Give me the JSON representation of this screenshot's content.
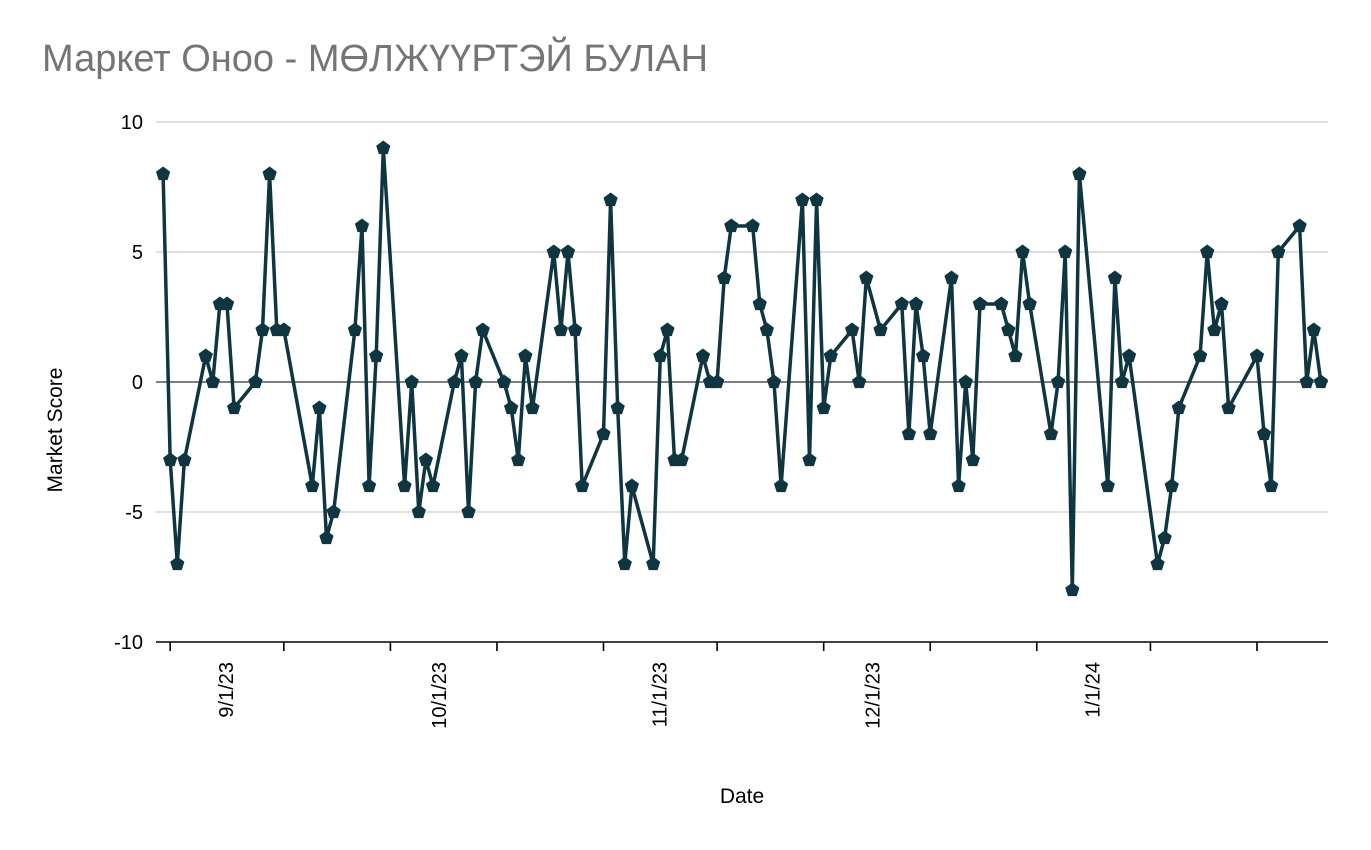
{
  "chart_data": {
    "type": "line",
    "title": "Маркет Оноо - МӨЛЖҮҮРТЭЙ БУЛАН",
    "xlabel": "Date",
    "ylabel": "Market Score",
    "ylim": [
      -10,
      10
    ],
    "yticks": [
      -10,
      -5,
      0,
      5,
      10
    ],
    "xtick_labels": [
      "9/1/23",
      "10/1/23",
      "11/1/23",
      "12/1/23",
      "1/1/24"
    ],
    "xlim": [
      "2023-08-14",
      "2024-01-26"
    ],
    "grid": true,
    "line_color": "#0f3640",
    "marker": "pentagon",
    "series": [
      {
        "x": [
          "2023-08-15",
          "2023-08-16",
          "2023-08-17",
          "2023-08-18",
          "2023-08-21",
          "2023-08-22",
          "2023-08-23",
          "2023-08-24",
          "2023-08-25",
          "2023-08-28",
          "2023-08-29",
          "2023-08-30",
          "2023-08-31",
          "2023-09-01",
          "2023-09-05",
          "2023-09-06",
          "2023-09-07",
          "2023-09-08",
          "2023-09-11",
          "2023-09-12",
          "2023-09-13",
          "2023-09-14",
          "2023-09-15",
          "2023-09-18",
          "2023-09-19",
          "2023-09-20",
          "2023-09-21",
          "2023-09-22",
          "2023-09-25",
          "2023-09-26",
          "2023-09-27",
          "2023-09-28",
          "2023-09-29",
          "2023-10-02",
          "2023-10-03",
          "2023-10-04",
          "2023-10-05",
          "2023-10-06",
          "2023-10-09",
          "2023-10-10",
          "2023-10-11",
          "2023-10-12",
          "2023-10-13",
          "2023-10-16",
          "2023-10-17",
          "2023-10-18",
          "2023-10-19",
          "2023-10-20",
          "2023-10-23",
          "2023-10-24",
          "2023-10-25",
          "2023-10-26",
          "2023-10-27",
          "2023-10-30",
          "2023-10-31",
          "2023-11-01",
          "2023-11-02",
          "2023-11-03",
          "2023-11-06",
          "2023-11-07",
          "2023-11-08",
          "2023-11-09",
          "2023-11-10",
          "2023-11-13",
          "2023-11-14",
          "2023-11-15",
          "2023-11-16",
          "2023-11-17",
          "2023-11-20",
          "2023-11-21",
          "2023-11-22",
          "2023-11-24",
          "2023-11-27",
          "2023-11-28",
          "2023-11-29",
          "2023-11-30",
          "2023-12-01",
          "2023-12-04",
          "2023-12-05",
          "2023-12-06",
          "2023-12-07",
          "2023-12-08",
          "2023-12-11",
          "2023-12-12",
          "2023-12-13",
          "2023-12-14",
          "2023-12-15",
          "2023-12-18",
          "2023-12-19",
          "2023-12-20",
          "2023-12-21",
          "2023-12-22",
          "2023-12-26",
          "2023-12-27",
          "2023-12-28",
          "2023-12-29",
          "2024-01-02",
          "2024-01-03",
          "2024-01-04",
          "2024-01-05",
          "2024-01-08",
          "2024-01-09",
          "2024-01-10",
          "2024-01-11",
          "2024-01-12",
          "2024-01-16",
          "2024-01-17",
          "2024-01-18",
          "2024-01-19",
          "2024-01-22",
          "2024-01-23",
          "2024-01-24",
          "2024-01-25"
        ],
        "values": [
          8,
          -3,
          -7,
          -3,
          1,
          0,
          3,
          3,
          -1,
          0,
          2,
          8,
          2,
          2,
          -4,
          -1,
          -6,
          -5,
          2,
          6,
          -4,
          1,
          9,
          -4,
          0,
          -5,
          -3,
          -4,
          0,
          1,
          -5,
          0,
          2,
          0,
          -1,
          -3,
          1,
          -1,
          5,
          2,
          5,
          2,
          -4,
          -2,
          7,
          -1,
          -7,
          -4,
          -7,
          1,
          2,
          -3,
          -3,
          1,
          0,
          0,
          4,
          6,
          6,
          3,
          2,
          0,
          -4,
          7,
          -3,
          7,
          -1,
          1,
          2,
          0,
          4,
          2,
          3,
          -2,
          3,
          1,
          -2,
          4,
          -4,
          0,
          -3,
          3,
          3,
          2,
          1,
          5,
          3,
          -2,
          0,
          5,
          -8,
          8,
          -4,
          4,
          0,
          1,
          -7,
          -6,
          -4,
          -1,
          1,
          5,
          2,
          3,
          -1,
          1,
          -2,
          -4,
          5,
          6,
          0,
          2,
          0
        ]
      }
    ]
  }
}
